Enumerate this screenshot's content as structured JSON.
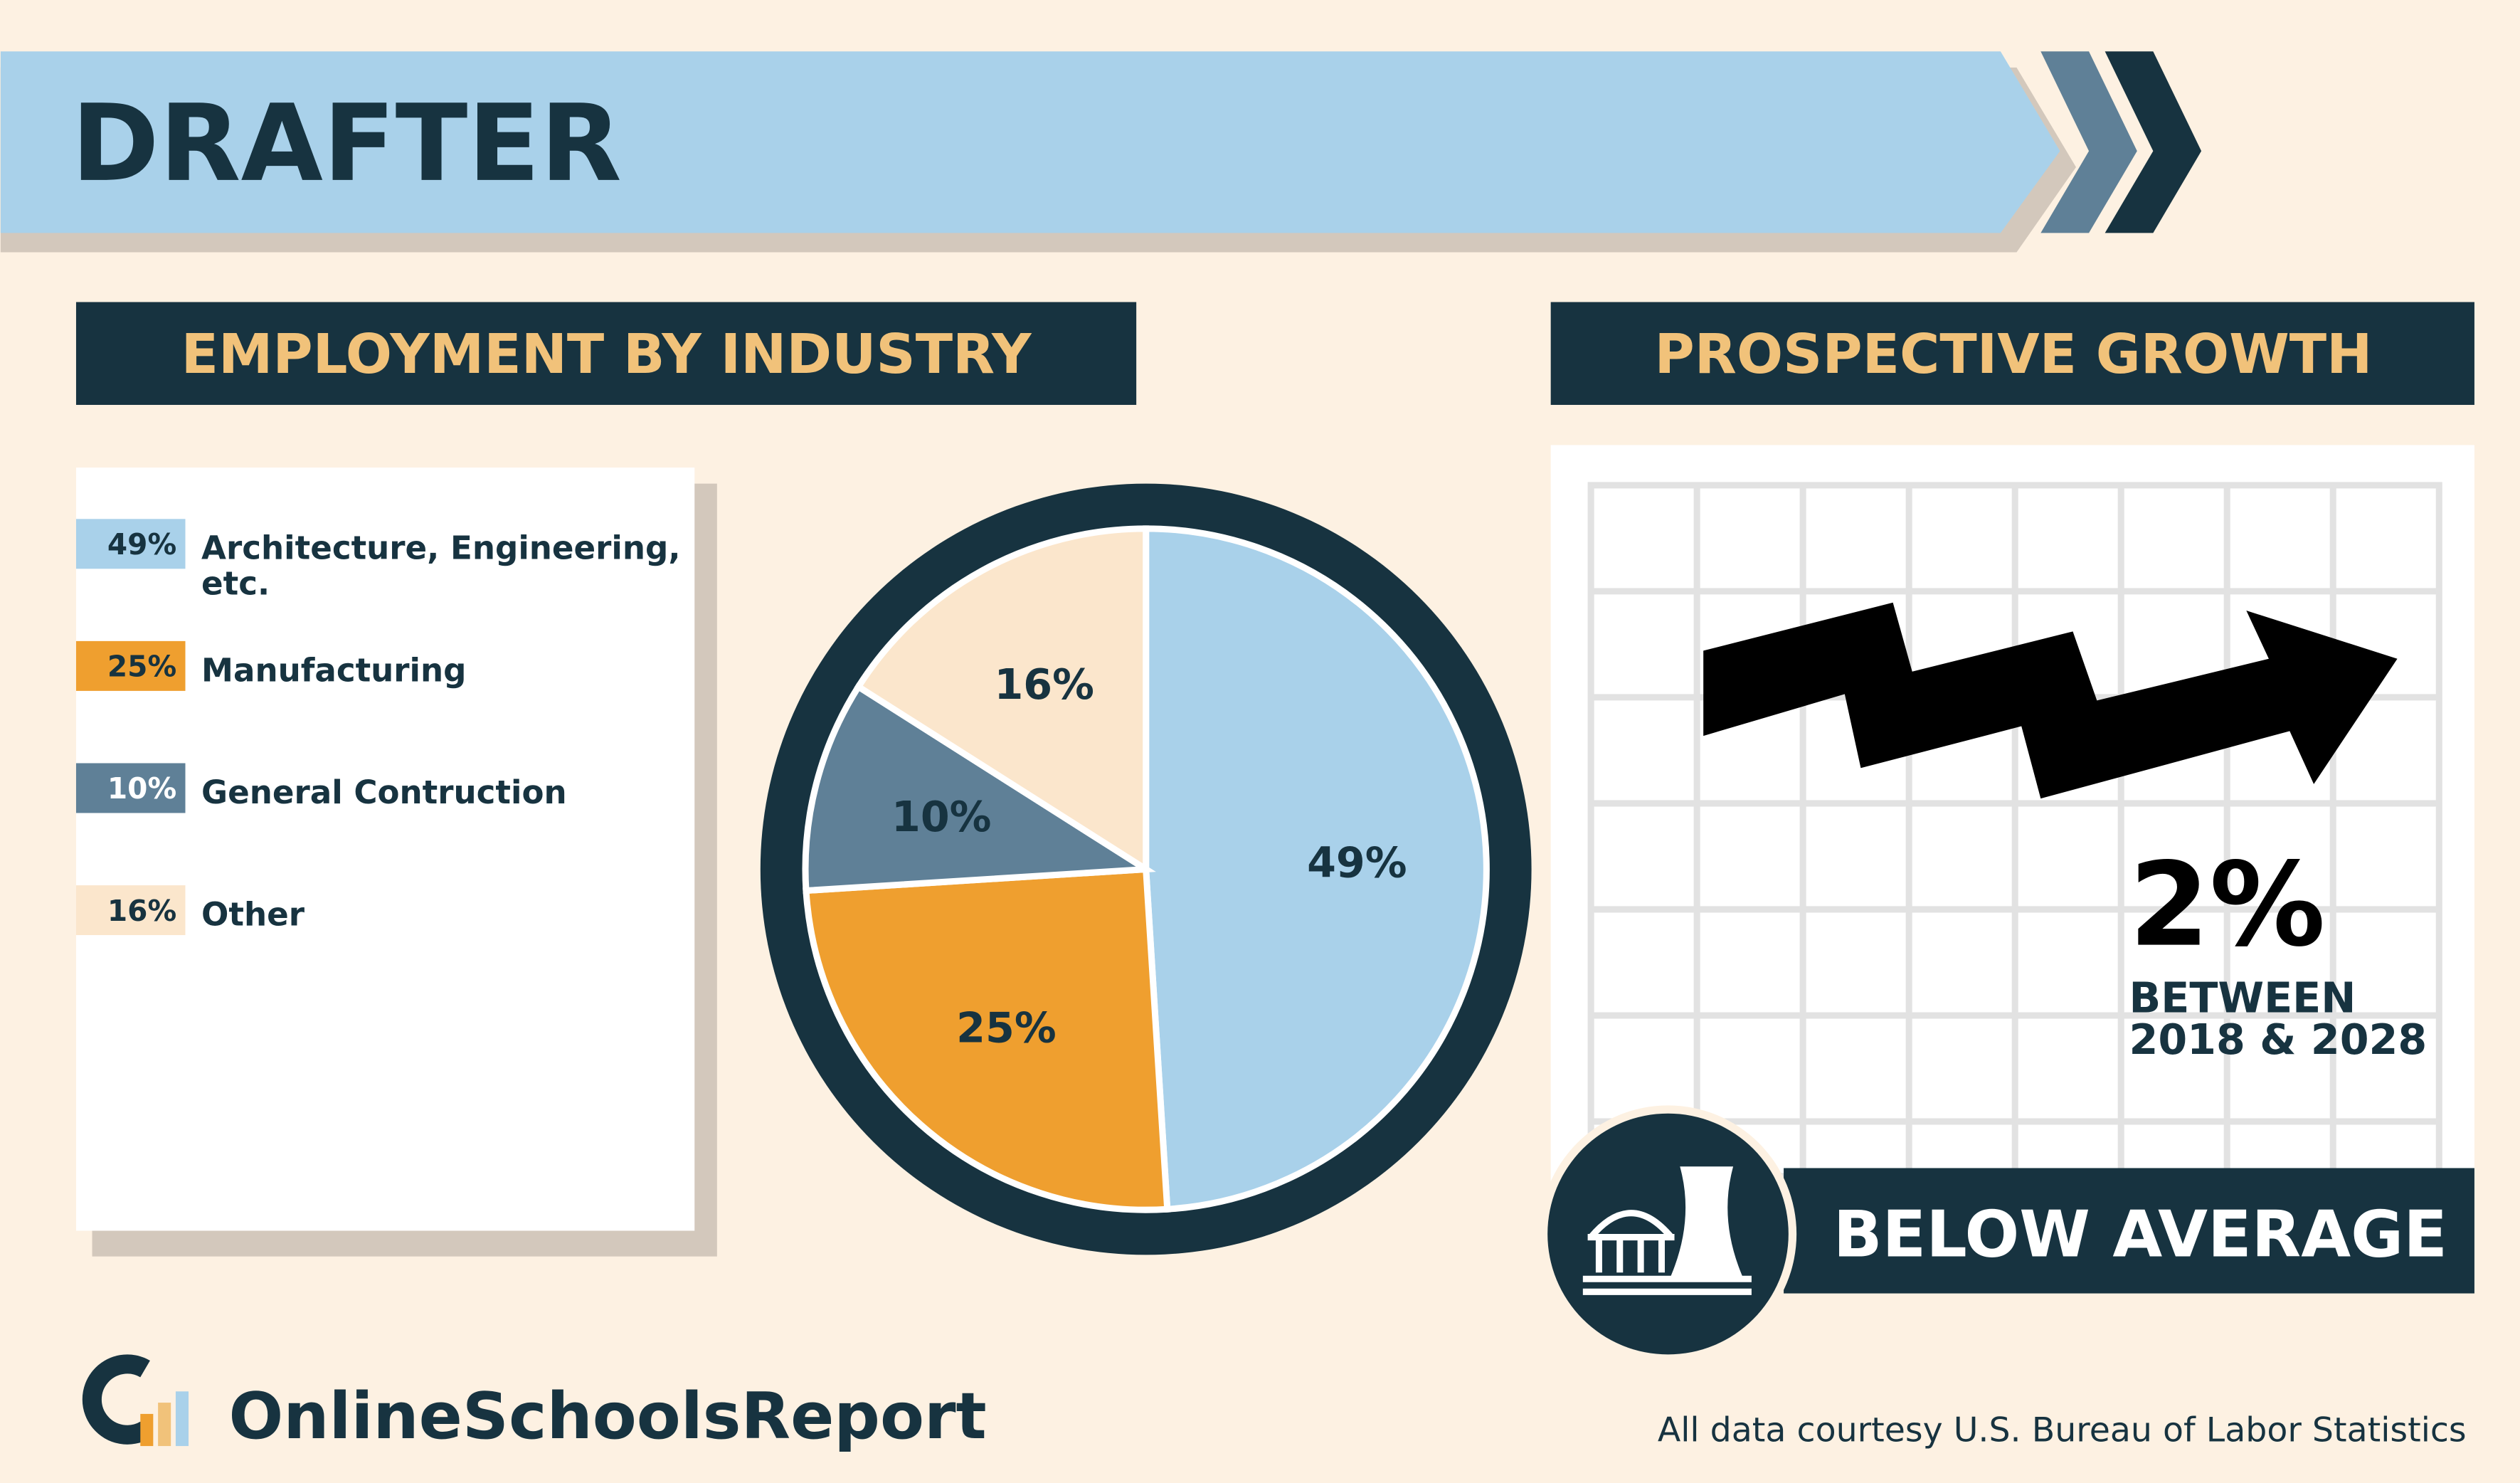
{
  "header": {
    "title": "DRAFTER"
  },
  "chart_data": {
    "type": "pie",
    "title": "EMPLOYMENT BY INDUSTRY",
    "categories": [
      "Architecture, Engineering, etc.",
      "Manufacturing",
      "General Contruction",
      "Other"
    ],
    "values": [
      49,
      25,
      10,
      16
    ],
    "value_labels": [
      "49%",
      "25%",
      "10%",
      "16%"
    ],
    "colors": [
      "#a9d1ea",
      "#ef9f2f",
      "#5f8097",
      "#fbe6cc"
    ]
  },
  "growth": {
    "title": "PROSPECTIVE GROWTH",
    "value_label": "2%",
    "period_line1": "BETWEEN",
    "period_line2": "2018 & 2028",
    "rating": "BELOW AVERAGE"
  },
  "footer": {
    "brand": "OnlineSchoolsReport",
    "source": "All data courtesy U.S. Bureau of Labor Statistics"
  }
}
